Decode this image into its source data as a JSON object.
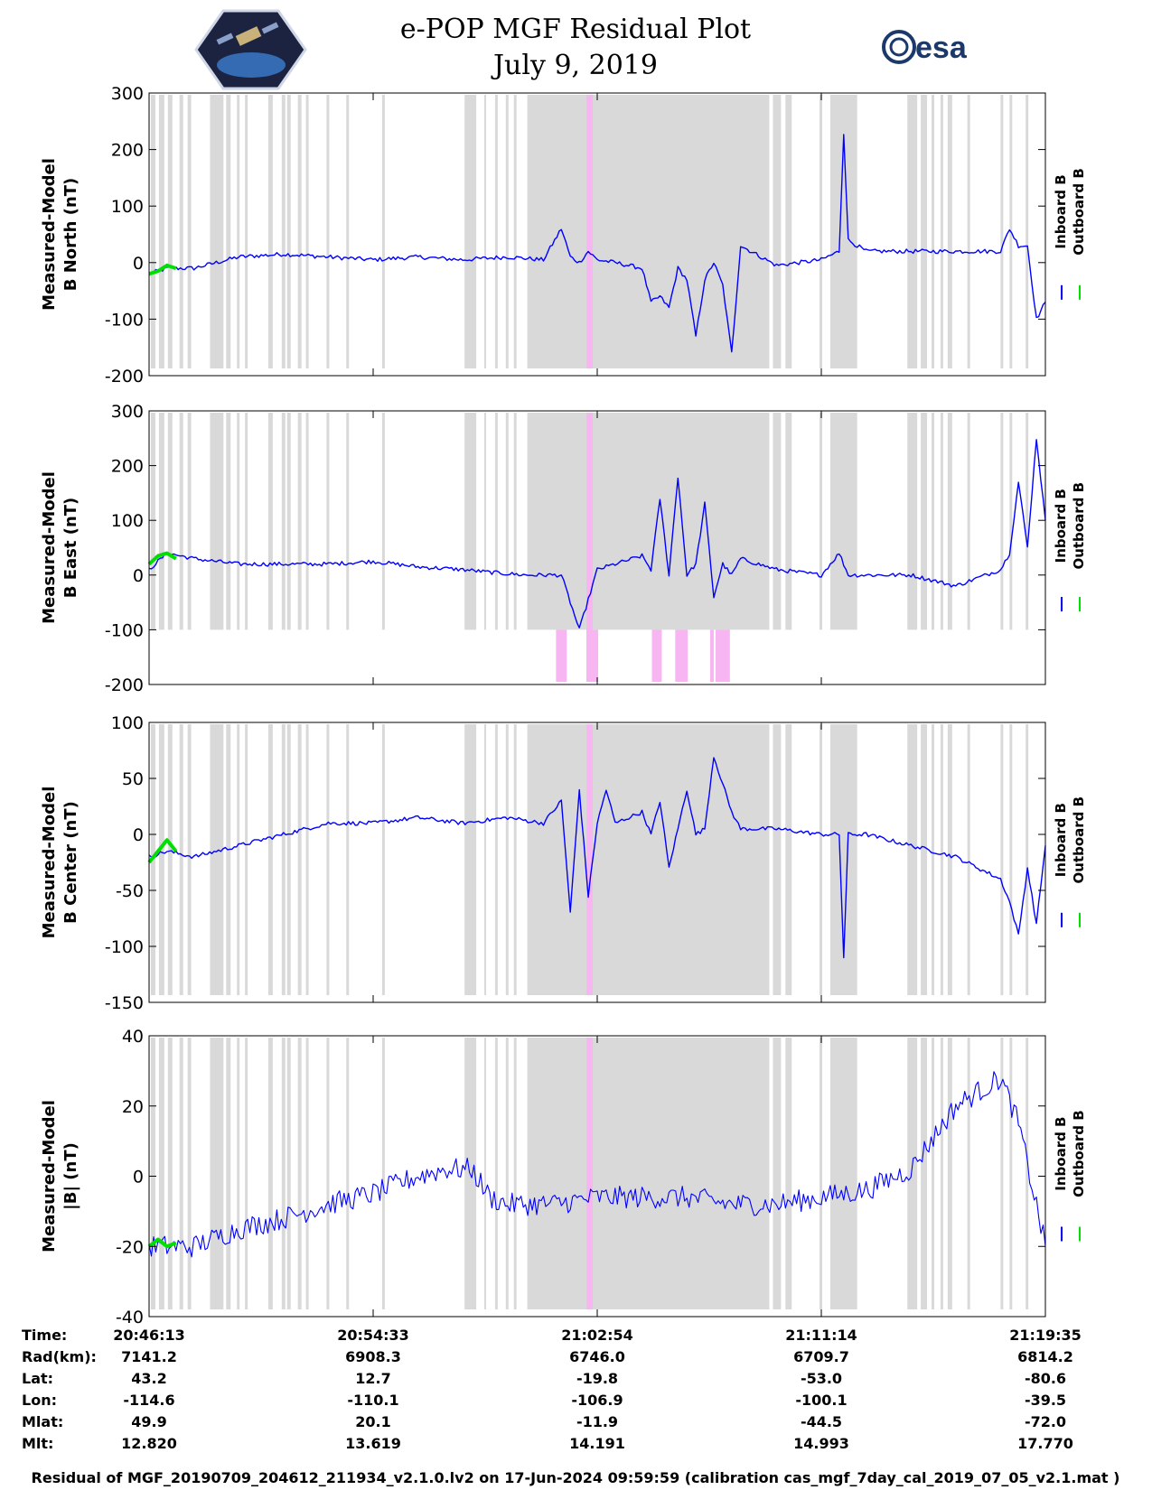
{
  "header": {
    "title_line1": "e-POP MGF Residual Plot",
    "title_line2": "July 9, 2019",
    "esa_logo_text": "esa",
    "cassiope_logo": "cassiope-mission-logo"
  },
  "colors": {
    "inboard": "#0000ff",
    "outboard": "#00e000",
    "gap_gray": "#d9d9d9",
    "event_pink": "#f7b6f2"
  },
  "legend": {
    "inboard_label": "Inboard B",
    "outboard_label": "Outboard B"
  },
  "chart_data": [
    {
      "type": "line",
      "ylabel_line1": "Measured-Model",
      "ylabel_line2": "B North (nT)",
      "ylim": [
        -200,
        300
      ],
      "yticks": [
        "300",
        "200",
        "100",
        "0",
        "-100",
        "-200"
      ],
      "series": [
        {
          "name": "Inboard B",
          "color": "#0000ff",
          "x": [
            0,
            0.02,
            0.05,
            0.1,
            0.15,
            0.2,
            0.25,
            0.3,
            0.35,
            0.4,
            0.44,
            0.46,
            0.47,
            0.48,
            0.49,
            0.5,
            0.52,
            0.55,
            0.56,
            0.57,
            0.58,
            0.59,
            0.6,
            0.61,
            0.62,
            0.63,
            0.64,
            0.65,
            0.66,
            0.7,
            0.75,
            0.77,
            0.775,
            0.78,
            0.8,
            0.85,
            0.9,
            0.95,
            0.96,
            0.97,
            0.98,
            0.99,
            1.0
          ],
          "y": [
            -20,
            -10,
            -10,
            10,
            15,
            10,
            5,
            10,
            5,
            10,
            5,
            60,
            10,
            0,
            20,
            5,
            0,
            -10,
            -70,
            -60,
            -80,
            -10,
            -30,
            -130,
            -30,
            0,
            -40,
            -160,
            30,
            -5,
            5,
            20,
            230,
            40,
            20,
            20,
            20,
            20,
            60,
            30,
            30,
            -100,
            -70
          ]
        },
        {
          "name": "Outboard B",
          "color": "#00e000",
          "x": [
            0,
            0.01,
            0.02,
            0.03
          ],
          "y": [
            -20,
            -15,
            -5,
            -10
          ]
        }
      ],
      "legend_position": "right"
    },
    {
      "type": "line",
      "ylabel_line1": "Measured-Model",
      "ylabel_line2": "B East (nT)",
      "ylim": [
        -200,
        300
      ],
      "yticks": [
        "300",
        "200",
        "100",
        "0",
        "-100",
        "-200"
      ],
      "series": [
        {
          "name": "Inboard B",
          "color": "#0000ff",
          "x": [
            0,
            0.02,
            0.05,
            0.1,
            0.15,
            0.2,
            0.25,
            0.3,
            0.35,
            0.38,
            0.42,
            0.44,
            0.46,
            0.48,
            0.5,
            0.52,
            0.55,
            0.56,
            0.57,
            0.58,
            0.59,
            0.6,
            0.61,
            0.62,
            0.63,
            0.64,
            0.65,
            0.66,
            0.7,
            0.75,
            0.77,
            0.78,
            0.8,
            0.85,
            0.9,
            0.95,
            0.96,
            0.97,
            0.98,
            0.99,
            1.0
          ],
          "y": [
            10,
            40,
            30,
            20,
            20,
            20,
            25,
            15,
            10,
            5,
            0,
            0,
            0,
            -100,
            10,
            20,
            35,
            10,
            140,
            0,
            180,
            0,
            20,
            130,
            -40,
            20,
            0,
            30,
            10,
            0,
            40,
            0,
            0,
            0,
            -20,
            10,
            40,
            170,
            50,
            250,
            100
          ]
        },
        {
          "name": "Outboard B",
          "color": "#00e000",
          "x": [
            0,
            0.01,
            0.02,
            0.03
          ],
          "y": [
            20,
            35,
            40,
            30
          ]
        }
      ],
      "legend_position": "right"
    },
    {
      "type": "line",
      "ylabel_line1": "Measured-Model",
      "ylabel_line2": "B Center (nT)",
      "ylim": [
        -150,
        100
      ],
      "yticks": [
        "100",
        "50",
        "0",
        "-50",
        "-100",
        "-150"
      ],
      "series": [
        {
          "name": "Inboard B",
          "color": "#0000ff",
          "x": [
            0,
            0.02,
            0.05,
            0.1,
            0.15,
            0.2,
            0.25,
            0.3,
            0.35,
            0.4,
            0.44,
            0.46,
            0.47,
            0.48,
            0.49,
            0.5,
            0.51,
            0.52,
            0.55,
            0.56,
            0.57,
            0.58,
            0.6,
            0.61,
            0.62,
            0.63,
            0.65,
            0.66,
            0.7,
            0.75,
            0.77,
            0.775,
            0.78,
            0.8,
            0.85,
            0.9,
            0.95,
            0.96,
            0.97,
            0.98,
            0.99,
            1.0
          ],
          "y": [
            -20,
            -15,
            -20,
            -10,
            0,
            10,
            10,
            15,
            10,
            15,
            10,
            30,
            -70,
            40,
            -55,
            10,
            40,
            10,
            20,
            0,
            30,
            -30,
            40,
            0,
            5,
            70,
            20,
            5,
            5,
            0,
            0,
            -110,
            0,
            0,
            -10,
            -20,
            -40,
            -60,
            -90,
            -30,
            -80,
            -10
          ]
        },
        {
          "name": "Outboard B",
          "color": "#00e000",
          "x": [
            0,
            0.01,
            0.02,
            0.03
          ],
          "y": [
            -25,
            -15,
            -5,
            -15
          ]
        }
      ],
      "legend_position": "right"
    },
    {
      "type": "line",
      "ylabel_line1": "Measured-Model",
      "ylabel_line2": "|B| (nT)",
      "ylim": [
        -40,
        40
      ],
      "yticks": [
        "40",
        "20",
        "0",
        "-20",
        "-40"
      ],
      "series": [
        {
          "name": "Inboard B",
          "color": "#0000ff",
          "x": [
            0,
            0.05,
            0.1,
            0.15,
            0.2,
            0.25,
            0.3,
            0.33,
            0.36,
            0.38,
            0.4,
            0.45,
            0.5,
            0.55,
            0.6,
            0.65,
            0.7,
            0.75,
            0.8,
            0.85,
            0.9,
            0.95,
            0.97,
            1.0
          ],
          "y": [
            -20,
            -20,
            -15,
            -12,
            -8,
            -5,
            0,
            2,
            2,
            -6,
            -8,
            -8,
            -6,
            -6,
            -6,
            -8,
            -8,
            -6,
            -4,
            2,
            20,
            28,
            15,
            -20
          ]
        },
        {
          "name": "Outboard B",
          "color": "#00e000",
          "x": [
            0,
            0.01,
            0.02,
            0.03
          ],
          "y": [
            -20,
            -18,
            -20,
            -19
          ]
        }
      ],
      "legend_position": "right"
    }
  ],
  "xaxis": {
    "time_ticks": [
      "20:46:13",
      "20:54:33",
      "21:02:54",
      "21:11:14",
      "21:19:35"
    ]
  },
  "ephemeris_table": {
    "rows": [
      {
        "label": "Time:",
        "values": [
          "20:46:13",
          "20:54:33",
          "21:02:54",
          "21:11:14",
          "21:19:35"
        ]
      },
      {
        "label": "Rad(km):",
        "values": [
          "7141.2",
          "6908.3",
          "6746.0",
          "6709.7",
          "6814.2"
        ]
      },
      {
        "label": "Lat:",
        "values": [
          "43.2",
          "12.7",
          "-19.8",
          "-53.0",
          "-80.6"
        ]
      },
      {
        "label": "Lon:",
        "values": [
          "-114.6",
          "-110.1",
          "-106.9",
          "-100.1",
          "-39.5"
        ]
      },
      {
        "label": "Mlat:",
        "values": [
          "49.9",
          "20.1",
          "-11.9",
          "-44.5",
          "-72.0"
        ]
      },
      {
        "label": "Mlt:",
        "values": [
          "12.820",
          "13.619",
          "14.191",
          "14.993",
          "17.770"
        ]
      }
    ]
  },
  "footer": {
    "text": "Residual of MGF_20190709_204612_211934_v2.1.0.lv2 on 17-Jun-2024 09:59:59 (calibration cas_mgf_7day_cal_2019_07_05_v2.1.mat )"
  }
}
